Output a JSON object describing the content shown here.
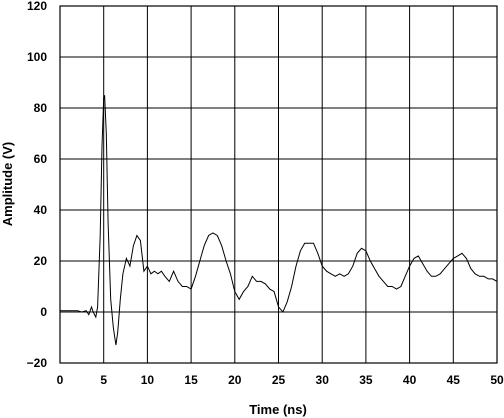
{
  "chart_data": {
    "type": "line",
    "title": "",
    "xlabel": "Time (ns)",
    "ylabel": "Amplitude (V)",
    "xlim": [
      0,
      50
    ],
    "ylim": [
      -20,
      120
    ],
    "xticks": [
      0,
      5,
      10,
      15,
      20,
      25,
      30,
      35,
      40,
      45,
      50
    ],
    "yticks": [
      -20,
      0,
      20,
      40,
      60,
      80,
      100,
      120
    ],
    "xtick_labels": [
      "0",
      "5",
      "10",
      "15",
      "20",
      "25",
      "30",
      "35",
      "40",
      "45",
      "50"
    ],
    "ytick_labels": [
      "−20",
      "0",
      "20",
      "40",
      "60",
      "80",
      "100",
      "120"
    ],
    "grid": true,
    "series": [
      {
        "color": "#000000",
        "x": [
          0,
          1,
          2,
          2.5,
          3,
          3.3,
          3.6,
          3.8,
          4.1,
          4.3,
          4.6,
          4.8,
          5.0,
          5.1,
          5.3,
          5.5,
          5.8,
          6.1,
          6.4,
          6.6,
          6.9,
          7.2,
          7.6,
          8.0,
          8.4,
          8.8,
          9.2,
          9.6,
          10.0,
          10.4,
          10.8,
          11.2,
          11.6,
          12.0,
          12.5,
          13.0,
          13.5,
          14.0,
          14.5,
          15.0,
          15.5,
          16.0,
          16.5,
          17.0,
          17.5,
          18.0,
          18.5,
          19.0,
          19.5,
          20.0,
          20.5,
          21.0,
          21.5,
          22.0,
          22.5,
          23.0,
          23.5,
          24.0,
          24.5,
          25.0,
          25.5,
          26.0,
          26.5,
          27.0,
          27.5,
          28.0,
          28.5,
          29.0,
          29.5,
          30.0,
          30.5,
          31.0,
          31.5,
          32.0,
          32.5,
          33.0,
          33.5,
          34.0,
          34.5,
          35.0,
          35.5,
          36.0,
          36.5,
          37.0,
          37.5,
          38.0,
          38.5,
          39.0,
          39.5,
          40.0,
          40.5,
          41.0,
          41.5,
          42.0,
          42.5,
          43.0,
          43.5,
          44.0,
          44.5,
          45.0,
          45.5,
          46.0,
          46.5,
          47.0,
          47.5,
          48.0,
          48.5,
          49.0,
          49.5,
          50.0
        ],
        "y": [
          0.5,
          0.5,
          0.5,
          0,
          0.5,
          -1,
          2,
          0,
          -2,
          2,
          30,
          65,
          84,
          85,
          70,
          35,
          5,
          -6,
          -13,
          -8,
          5,
          15,
          21,
          18,
          26,
          30,
          28,
          16,
          18,
          15,
          16,
          15,
          16,
          14,
          12,
          16,
          12,
          10,
          10,
          9,
          14,
          20,
          26,
          30,
          31,
          30,
          26,
          20,
          15,
          8,
          5,
          8,
          10,
          14,
          12,
          12,
          11,
          9,
          8,
          2,
          0,
          4,
          10,
          18,
          24,
          27,
          27,
          27,
          23,
          18,
          16,
          15,
          14,
          15,
          14,
          15,
          18,
          23,
          25,
          24,
          20,
          17,
          14,
          12,
          10,
          10,
          9,
          10,
          14,
          18,
          21,
          22,
          19,
          16,
          14,
          14,
          15,
          17,
          19,
          21,
          22,
          23,
          21,
          17,
          15,
          14,
          14,
          13,
          13,
          12
        ]
      }
    ]
  }
}
